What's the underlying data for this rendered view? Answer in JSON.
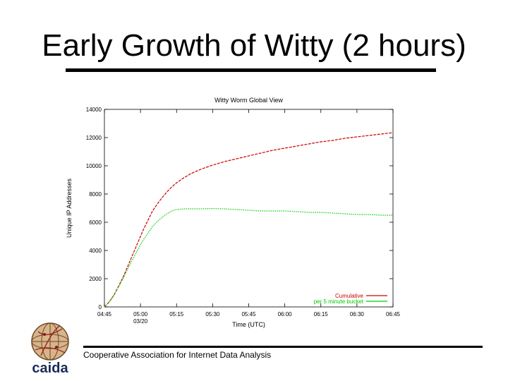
{
  "slide": {
    "title": "Early Growth of Witty (2 hours)",
    "footer": "Cooperative Association for Internet Data Analysis",
    "logo_text": "caida"
  },
  "chart_data": {
    "type": "line",
    "title": "Witty Worm Global View",
    "xlabel": "Time (UTC)",
    "ylabel": "Unique IP Addresses",
    "ylim": [
      0,
      14000
    ],
    "yticks": [
      0,
      2000,
      4000,
      6000,
      8000,
      10000,
      12000,
      14000
    ],
    "xticks": [
      {
        "label": "04:45",
        "sub": ""
      },
      {
        "label": "05:00",
        "sub": "03/20"
      },
      {
        "label": "05:15",
        "sub": ""
      },
      {
        "label": "05:30",
        "sub": ""
      },
      {
        "label": "05:45",
        "sub": ""
      },
      {
        "label": "06:00",
        "sub": ""
      },
      {
        "label": "06:15",
        "sub": ""
      },
      {
        "label": "06:30",
        "sub": ""
      },
      {
        "label": "06:45",
        "sub": ""
      }
    ],
    "xlim_minutes": [
      0,
      120
    ],
    "legend_placement": "bottom-right",
    "series": [
      {
        "name": "Cumulative",
        "color": "#cc0000",
        "x": [
          0,
          2,
          4,
          6,
          8,
          10,
          12,
          14,
          16,
          18,
          20,
          22,
          24,
          26,
          28,
          30,
          33,
          36,
          40,
          45,
          50,
          55,
          60,
          65,
          70,
          75,
          80,
          85,
          90,
          95,
          100,
          105,
          110,
          115,
          120
        ],
        "values": [
          0,
          350,
          850,
          1500,
          2200,
          3000,
          3800,
          4600,
          5400,
          6100,
          6800,
          7300,
          7750,
          8150,
          8500,
          8800,
          9150,
          9450,
          9750,
          10050,
          10300,
          10500,
          10700,
          10900,
          11100,
          11250,
          11400,
          11550,
          11700,
          11800,
          11950,
          12050,
          12150,
          12250,
          12350
        ]
      },
      {
        "name": "per 5 minute bucket",
        "color": "#00cc00",
        "x": [
          0,
          2,
          4,
          6,
          8,
          10,
          12,
          14,
          16,
          18,
          20,
          22,
          24,
          26,
          28,
          30,
          33,
          36,
          40,
          45,
          50,
          55,
          60,
          65,
          70,
          75,
          80,
          85,
          90,
          95,
          100,
          105,
          110,
          115,
          120
        ],
        "values": [
          0,
          350,
          850,
          1450,
          2100,
          2800,
          3450,
          4100,
          4700,
          5200,
          5700,
          6050,
          6350,
          6600,
          6800,
          6900,
          6950,
          6950,
          6950,
          6970,
          6950,
          6900,
          6850,
          6800,
          6800,
          6800,
          6750,
          6700,
          6700,
          6650,
          6600,
          6550,
          6550,
          6500,
          6500
        ]
      }
    ]
  }
}
